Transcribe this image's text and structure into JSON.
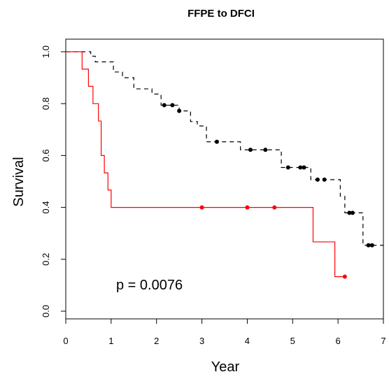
{
  "chart_data": {
    "type": "line",
    "title": "FFPE to DFCI",
    "xlabel": "Year",
    "ylabel": "Survival",
    "xlim": [
      0,
      7
    ],
    "ylim": [
      0,
      1
    ],
    "x_ticks": [
      0,
      1,
      2,
      3,
      4,
      5,
      6,
      7
    ],
    "y_ticks": [
      0.0,
      0.2,
      0.4,
      0.6,
      0.8,
      1.0
    ],
    "y_tick_labels": [
      "0.0",
      "0.2",
      "0.4",
      "0.6",
      "0.8",
      "1.0"
    ],
    "annotation": "p = 0.0076",
    "grid": false,
    "series": [
      {
        "style": "dashed",
        "color": "#000000",
        "step_x": [
          0,
          0.55,
          0.65,
          1.05,
          1.25,
          1.5,
          1.9,
          2.1,
          2.5,
          2.75,
          2.9,
          3.1,
          3.5,
          3.85,
          4.6,
          4.75,
          5.25,
          5.4,
          5.85,
          6.05,
          6.15,
          6.55,
          7.0
        ],
        "step_y": [
          1.0,
          0.983,
          0.961,
          0.922,
          0.9,
          0.857,
          0.837,
          0.794,
          0.772,
          0.731,
          0.714,
          0.653,
          0.653,
          0.622,
          0.622,
          0.554,
          0.554,
          0.507,
          0.507,
          0.443,
          0.379,
          0.254,
          0.254
        ],
        "censor_x": [
          2.17,
          2.35,
          2.5,
          3.33,
          4.07,
          4.4,
          4.9,
          5.17,
          5.25,
          5.55,
          5.7,
          6.25,
          6.32,
          6.67,
          6.75
        ],
        "censor_y": [
          0.794,
          0.794,
          0.772,
          0.653,
          0.622,
          0.622,
          0.554,
          0.554,
          0.554,
          0.507,
          0.507,
          0.379,
          0.379,
          0.254,
          0.254
        ]
      },
      {
        "style": "solid",
        "color": "#ff0000",
        "step_x": [
          0,
          0.36,
          0.5,
          0.6,
          0.72,
          0.78,
          0.85,
          0.93,
          1.0,
          5.45,
          5.93,
          6.15
        ],
        "step_y": [
          1.0,
          0.933,
          0.867,
          0.8,
          0.733,
          0.6,
          0.533,
          0.467,
          0.4,
          0.267,
          0.133,
          0.133
        ],
        "censor_x": [
          3.0,
          4.0,
          4.6,
          6.15
        ],
        "censor_y": [
          0.4,
          0.4,
          0.4,
          0.133
        ]
      }
    ]
  }
}
